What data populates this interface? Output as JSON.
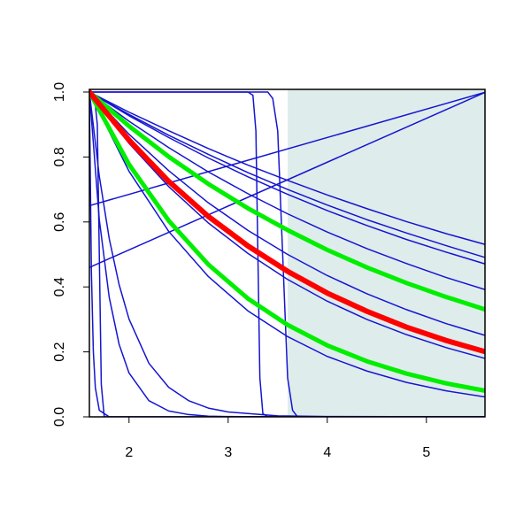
{
  "chart_data": {
    "type": "line",
    "xlim": [
      1.6,
      5.6
    ],
    "ylim": [
      0,
      1
    ],
    "xticks": [
      2,
      3,
      4,
      5
    ],
    "yticks": [
      {
        "value": 0,
        "label": "0.0"
      },
      0.2,
      0.4,
      0.6,
      0.8,
      {
        "value": 1,
        "label": "1.0"
      }
    ],
    "shade": {
      "from": 3.6,
      "color": "#dfecec"
    },
    "series": [
      {
        "color": "#1515d0",
        "width": 1.5,
        "x": [
          1.6,
          2.0,
          2.4,
          2.8,
          3.2,
          3.6,
          4.0,
          4.4,
          4.8,
          5.2,
          5.6
        ],
        "values": [
          1,
          0.938,
          0.881,
          0.826,
          0.775,
          0.728,
          0.683,
          0.641,
          0.601,
          0.564,
          0.53
        ]
      },
      {
        "color": "#1515d0",
        "width": 1.5,
        "x": [
          1.6,
          2.0,
          2.4,
          2.8,
          3.2,
          3.6,
          4.0,
          4.4,
          4.8,
          5.2,
          5.6
        ],
        "values": [
          1,
          0.931,
          0.867,
          0.808,
          0.752,
          0.7,
          0.652,
          0.607,
          0.566,
          0.527,
          0.49
        ]
      },
      {
        "color": "#1515d0",
        "width": 1.5,
        "x": [
          1.6,
          2.0,
          2.4,
          2.8,
          3.2,
          3.6,
          4.0,
          4.4,
          4.8,
          5.2,
          5.6
        ],
        "values": [
          1,
          0.927,
          0.86,
          0.797,
          0.739,
          0.685,
          0.635,
          0.589,
          0.546,
          0.507,
          0.47
        ]
      },
      {
        "color": "#1515d0",
        "width": 1.5,
        "x": [
          1.6,
          2.0,
          2.4,
          2.8,
          3.2,
          3.6,
          4.0,
          4.4,
          4.8,
          5.2,
          5.6
        ],
        "values": [
          1,
          0.91,
          0.829,
          0.754,
          0.687,
          0.625,
          0.569,
          0.518,
          0.472,
          0.429,
          0.391
        ]
      },
      {
        "color": "#1515d0",
        "width": 1.5,
        "x": [
          1.6,
          2.0,
          2.4,
          2.8,
          3.2,
          3.6,
          4.0,
          4.4,
          4.8,
          5.2,
          5.6
        ],
        "values": [
          1,
          0.87,
          0.758,
          0.659,
          0.574,
          0.5,
          0.435,
          0.379,
          0.33,
          0.287,
          0.25
        ]
      },
      {
        "color": "#1515d0",
        "width": 1.5,
        "x": [
          1.6,
          2.0,
          2.4,
          2.8,
          3.2,
          3.6,
          4.0,
          4.4,
          4.8,
          5.2,
          5.6
        ],
        "values": [
          1,
          0.842,
          0.709,
          0.597,
          0.503,
          0.423,
          0.356,
          0.3,
          0.253,
          0.213,
          0.179
        ]
      },
      {
        "color": "#1515d0",
        "width": 1.5,
        "x": [
          1.6,
          2.0,
          2.4,
          2.8,
          3.2,
          3.6,
          4.0,
          4.4,
          4.8,
          5.2,
          5.6
        ],
        "values": [
          1,
          0.756,
          0.571,
          0.432,
          0.326,
          0.247,
          0.186,
          0.141,
          0.106,
          0.08,
          0.061
        ]
      },
      {
        "color": "#1515d0",
        "width": 1.5,
        "x": [
          1.6,
          5.6
        ],
        "values": [
          0.65,
          1
        ]
      },
      {
        "color": "#1515d0",
        "width": 1.5,
        "x": [
          1.6,
          5.6
        ],
        "values": [
          0.46,
          1
        ]
      },
      {
        "color": "#1515d0",
        "width": 1.5,
        "x": [
          1.6,
          1.7,
          1.8,
          1.9,
          2.0,
          2.2,
          2.4,
          2.6,
          2.8,
          3.0,
          3.5,
          4.0,
          5.6
        ],
        "values": [
          1,
          0.607,
          0.368,
          0.223,
          0.135,
          0.05,
          0.018,
          0.007,
          0.002,
          0.001,
          0,
          0,
          0
        ]
      },
      {
        "color": "#1515d0",
        "width": 1.5,
        "x": [
          1.6,
          1.7,
          1.8,
          1.9,
          2.0,
          2.2,
          2.4,
          2.6,
          2.8,
          3.0,
          3.5,
          4.0,
          5.6
        ],
        "values": [
          1,
          0.741,
          0.549,
          0.407,
          0.301,
          0.165,
          0.091,
          0.05,
          0.027,
          0.015,
          0.003,
          0.001,
          0
        ]
      },
      {
        "color": "#1515d0",
        "width": 1.5,
        "x": [
          1.6,
          1.62,
          1.64,
          1.66,
          1.7,
          1.8,
          5.6
        ],
        "values": [
          1,
          0.45,
          0.2,
          0.09,
          0.02,
          0,
          0
        ]
      },
      {
        "color": "#1515d0",
        "width": 1.5,
        "x": [
          1.6,
          1.65,
          1.68,
          1.7,
          1.72,
          1.75,
          5.6
        ],
        "values": [
          1,
          0.99,
          0.9,
          0.5,
          0.1,
          0,
          0
        ]
      },
      {
        "color": "#1515d0",
        "width": 1.5,
        "x": [
          1.6,
          3.2,
          3.25,
          3.28,
          3.3,
          3.32,
          3.35,
          3.4,
          5.6
        ],
        "values": [
          1,
          1,
          0.99,
          0.88,
          0.5,
          0.12,
          0.01,
          0,
          0
        ]
      },
      {
        "color": "#1515d0",
        "width": 1.5,
        "x": [
          1.6,
          3.4,
          3.45,
          3.5,
          3.55,
          3.6,
          3.65,
          3.7,
          5.6
        ],
        "values": [
          1,
          1,
          0.98,
          0.88,
          0.5,
          0.12,
          0.02,
          0,
          0
        ]
      },
      {
        "color": "#00ee00",
        "width": 5,
        "x": [
          1.6,
          2.0,
          2.4,
          2.8,
          3.2,
          3.6,
          4.0,
          4.4,
          4.8,
          5.2,
          5.6
        ],
        "values": [
          1,
          0.895,
          0.801,
          0.717,
          0.642,
          0.575,
          0.514,
          0.46,
          0.412,
          0.369,
          0.33
        ]
      },
      {
        "color": "#00ee00",
        "width": 5,
        "x": [
          1.6,
          2.0,
          2.4,
          2.8,
          3.2,
          3.6,
          4.0,
          4.4,
          4.8,
          5.2,
          5.6
        ],
        "values": [
          1,
          0.777,
          0.604,
          0.469,
          0.364,
          0.283,
          0.22,
          0.171,
          0.133,
          0.103,
          0.08
        ]
      },
      {
        "color": "#ff0000",
        "width": 6,
        "x": [
          1.6,
          2.0,
          2.4,
          2.8,
          3.2,
          3.6,
          4.0,
          4.4,
          4.8,
          5.2,
          5.6
        ],
        "values": [
          1,
          0.852,
          0.725,
          0.617,
          0.526,
          0.448,
          0.381,
          0.325,
          0.276,
          0.235,
          0.2
        ]
      }
    ]
  }
}
